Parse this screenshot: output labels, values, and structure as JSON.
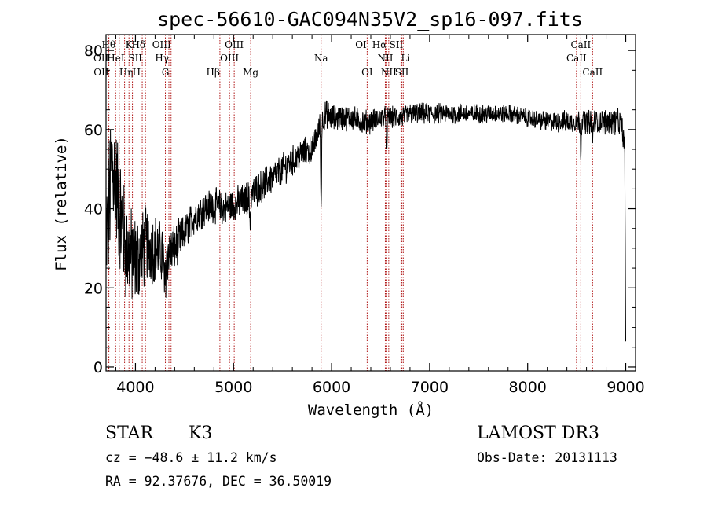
{
  "chart_data": {
    "type": "line",
    "title": "spec-56610-GAC094N35V2_sp16-097.fits",
    "xlabel": "Wavelength (Å)",
    "ylabel": "Flux (relative)",
    "xlim": [
      3700,
      9100
    ],
    "ylim": [
      -1,
      84
    ],
    "xticks": [
      4000,
      5000,
      6000,
      7000,
      8000,
      9000
    ],
    "xtick_labels": [
      "4000",
      "5000",
      "6000",
      "7000",
      "8000",
      "9000"
    ],
    "yticks": [
      0,
      20,
      40,
      60,
      80
    ],
    "ytick_labels": [
      "0",
      "20",
      "40",
      "60",
      "80"
    ],
    "continuum": {
      "wavelength": [
        3700,
        3730,
        3760,
        3800,
        3850,
        3900,
        3950,
        4000,
        4050,
        4100,
        4200,
        4300,
        4400,
        4500,
        4600,
        4700,
        4800,
        4900,
        5000,
        5100,
        5200,
        5300,
        5400,
        5500,
        5600,
        5700,
        5800,
        5850,
        5890,
        5950,
        6000,
        6100,
        6200,
        6300,
        6400,
        6500,
        6600,
        6700,
        6800,
        6900,
        7000,
        7200,
        7400,
        7600,
        7800,
        8000,
        8200,
        8400,
        8500,
        8600,
        8700,
        8800,
        8900,
        8960,
        8990,
        9000
      ],
      "flux": [
        30,
        40,
        52,
        46,
        38,
        30,
        28,
        27,
        28,
        31,
        30,
        28,
        30,
        34,
        38,
        40,
        41,
        40,
        41,
        42,
        44,
        46,
        48,
        50,
        52,
        54,
        55,
        58,
        62,
        64,
        63,
        63,
        63,
        62,
        62,
        63,
        63,
        63,
        64,
        64,
        64,
        64,
        64,
        64,
        64,
        63,
        62,
        62,
        62,
        62,
        62,
        62,
        62,
        61,
        55,
        5
      ]
    },
    "noise": {
      "wavelength": [
        3700,
        4000,
        4500,
        5500,
        6500,
        8000,
        8950,
        9000
      ],
      "amplitude": [
        16,
        10,
        4,
        3.5,
        2.5,
        2,
        3,
        3
      ]
    },
    "absorption": [
      {
        "center": 4300,
        "depth": 8,
        "width": 12
      },
      {
        "center": 5170,
        "depth": 6,
        "width": 10
      },
      {
        "center": 5893,
        "depth": 22,
        "width": 6
      },
      {
        "center": 6563,
        "depth": 10,
        "width": 5
      },
      {
        "center": 8542,
        "depth": 8,
        "width": 5
      },
      {
        "center": 8662,
        "depth": 5,
        "width": 5
      }
    ],
    "lines": [
      {
        "label": "Hθ",
        "wavelength": 3798,
        "row": 0,
        "align": "end"
      },
      {
        "label": "OII",
        "wavelength": 3727,
        "row": 1,
        "align": "end"
      },
      {
        "label": "OII",
        "wavelength": 3729,
        "row": 2,
        "align": "end"
      },
      {
        "label": "K",
        "wavelength": 3934,
        "row": 0,
        "align": "middle"
      },
      {
        "label": "HeI",
        "wavelength": 3889,
        "row": 1,
        "align": "end"
      },
      {
        "label": "Hη",
        "wavelength": 3835,
        "row": 2,
        "align": "start"
      },
      {
        "label": "H",
        "wavelength": 3969,
        "row": 2,
        "align": "start"
      },
      {
        "label": "SII",
        "wavelength": 4069,
        "row": 1,
        "align": "end"
      },
      {
        "label": "Hδ",
        "wavelength": 4102,
        "row": 0,
        "align": "end"
      },
      {
        "label": "OIII",
        "wavelength": 4363,
        "row": 0,
        "align": "end"
      },
      {
        "label": "Hγ",
        "wavelength": 4341,
        "row": 1,
        "align": "end"
      },
      {
        "label": "G",
        "wavelength": 4305,
        "row": 2,
        "align": "middle"
      },
      {
        "label": "Hβ",
        "wavelength": 4861,
        "row": 2,
        "align": "end"
      },
      {
        "label": "OIII",
        "wavelength": 5007,
        "row": 0,
        "align": "middle"
      },
      {
        "label": "OIII",
        "wavelength": 4959,
        "row": 1,
        "align": "middle"
      },
      {
        "label": "Mg",
        "wavelength": 5175,
        "row": 2,
        "align": "middle"
      },
      {
        "label": "Na",
        "wavelength": 5893,
        "row": 1,
        "align": "middle"
      },
      {
        "label": "OI",
        "wavelength": 6300,
        "row": 0,
        "align": "middle"
      },
      {
        "label": "OI",
        "wavelength": 6363,
        "row": 2,
        "align": "middle"
      },
      {
        "label": "Hα",
        "wavelength": 6563,
        "row": 0,
        "align": "end"
      },
      {
        "label": "NII",
        "wavelength": 6548,
        "row": 1,
        "align": "middle"
      },
      {
        "label": "NII",
        "wavelength": 6583,
        "row": 2,
        "align": "middle"
      },
      {
        "label": "SII",
        "wavelength": 6731,
        "row": 0,
        "align": "end"
      },
      {
        "label": "Li",
        "wavelength": 6708,
        "row": 1,
        "align": "start"
      },
      {
        "label": "SII",
        "wavelength": 6717,
        "row": 2,
        "align": "middle"
      },
      {
        "label": "CaII",
        "wavelength": 8542,
        "row": 0,
        "align": "middle"
      },
      {
        "label": "CaII",
        "wavelength": 8498,
        "row": 1,
        "align": "middle"
      },
      {
        "label": "CaII",
        "wavelength": 8662,
        "row": 2,
        "align": "middle"
      }
    ]
  },
  "info": {
    "object_class": "STAR",
    "subclass": "K3",
    "survey": "LAMOST DR3",
    "cz": "cz = −48.6 ± 11.2 km/s",
    "obs_date": "Obs-Date: 20131113",
    "coords": "RA =  92.37676, DEC =  36.50019"
  }
}
